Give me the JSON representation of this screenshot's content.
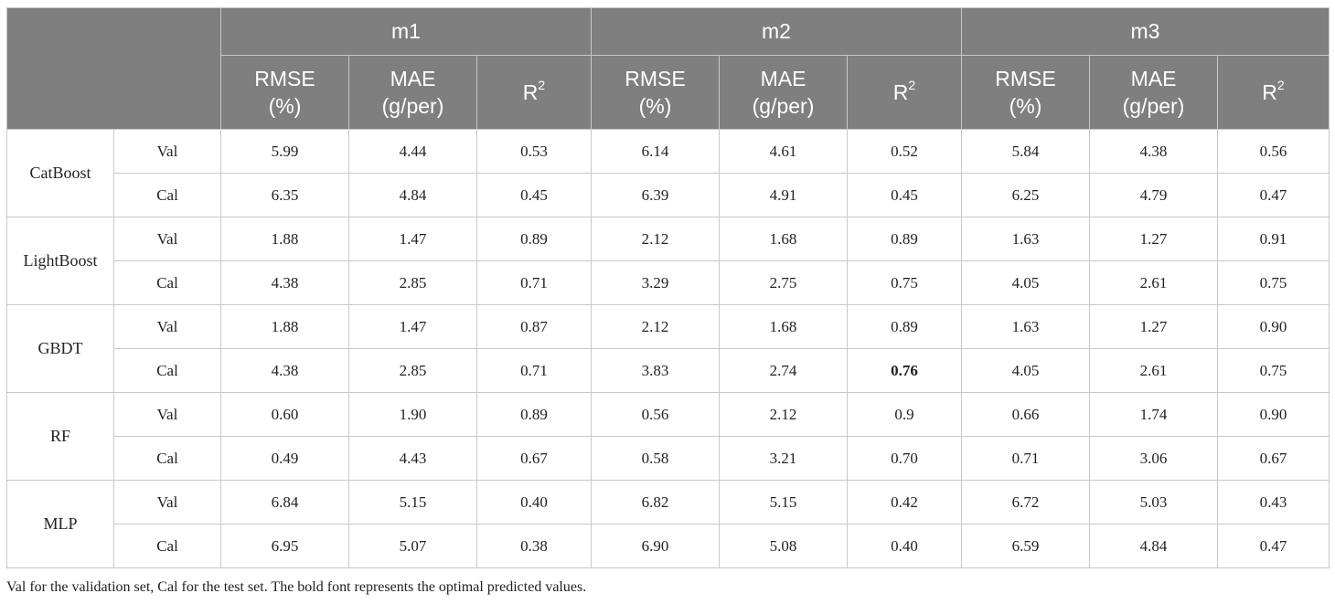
{
  "groups": [
    "m1",
    "m2",
    "m3"
  ],
  "metrics": [
    {
      "line1": "RMSE",
      "line2": "(%)"
    },
    {
      "line1": "MAE",
      "line2": "(g/per)"
    },
    {
      "line1": "R",
      "sup": "2"
    }
  ],
  "rows": [
    {
      "model": "CatBoost",
      "set": "Val",
      "values": [
        "5.99",
        "4.44",
        "0.53",
        "6.14",
        "4.61",
        "0.52",
        "5.84",
        "4.38",
        "0.56"
      ]
    },
    {
      "model": "CatBoost",
      "set": "Cal",
      "values": [
        "6.35",
        "4.84",
        "0.45",
        "6.39",
        "4.91",
        "0.45",
        "6.25",
        "4.79",
        "0.47"
      ]
    },
    {
      "model": "LightBoost",
      "set": "Val",
      "values": [
        "1.88",
        "1.47",
        "0.89",
        "2.12",
        "1.68",
        "0.89",
        "1.63",
        "1.27",
        "0.91"
      ]
    },
    {
      "model": "LightBoost",
      "set": "Cal",
      "values": [
        "4.38",
        "2.85",
        "0.71",
        "3.29",
        "2.75",
        "0.75",
        "4.05",
        "2.61",
        "0.75"
      ]
    },
    {
      "model": "GBDT",
      "set": "Val",
      "values": [
        "1.88",
        "1.47",
        "0.87",
        "2.12",
        "1.68",
        "0.89",
        "1.63",
        "1.27",
        "0.90"
      ]
    },
    {
      "model": "GBDT",
      "set": "Cal",
      "values": [
        "4.38",
        "2.85",
        "0.71",
        "3.83",
        "2.74",
        "0.76",
        "4.05",
        "2.61",
        "0.75"
      ],
      "bold": [
        5
      ]
    },
    {
      "model": "RF",
      "set": "Val",
      "values": [
        "0.60",
        "1.90",
        "0.89",
        "0.56",
        "2.12",
        "0.9",
        "0.66",
        "1.74",
        "0.90"
      ]
    },
    {
      "model": "RF",
      "set": "Cal",
      "values": [
        "0.49",
        "4.43",
        "0.67",
        "0.58",
        "3.21",
        "0.70",
        "0.71",
        "3.06",
        "0.67"
      ]
    },
    {
      "model": "MLP",
      "set": "Val",
      "values": [
        "6.84",
        "5.15",
        "0.40",
        "6.82",
        "5.15",
        "0.42",
        "6.72",
        "5.03",
        "0.43"
      ]
    },
    {
      "model": "MLP",
      "set": "Cal",
      "values": [
        "6.95",
        "5.07",
        "0.38",
        "6.90",
        "5.08",
        "0.40",
        "6.59",
        "4.84",
        "0.47"
      ]
    }
  ],
  "footnote": "Val for the validation set, Cal for the test set. The bold font represents the optimal predicted values."
}
